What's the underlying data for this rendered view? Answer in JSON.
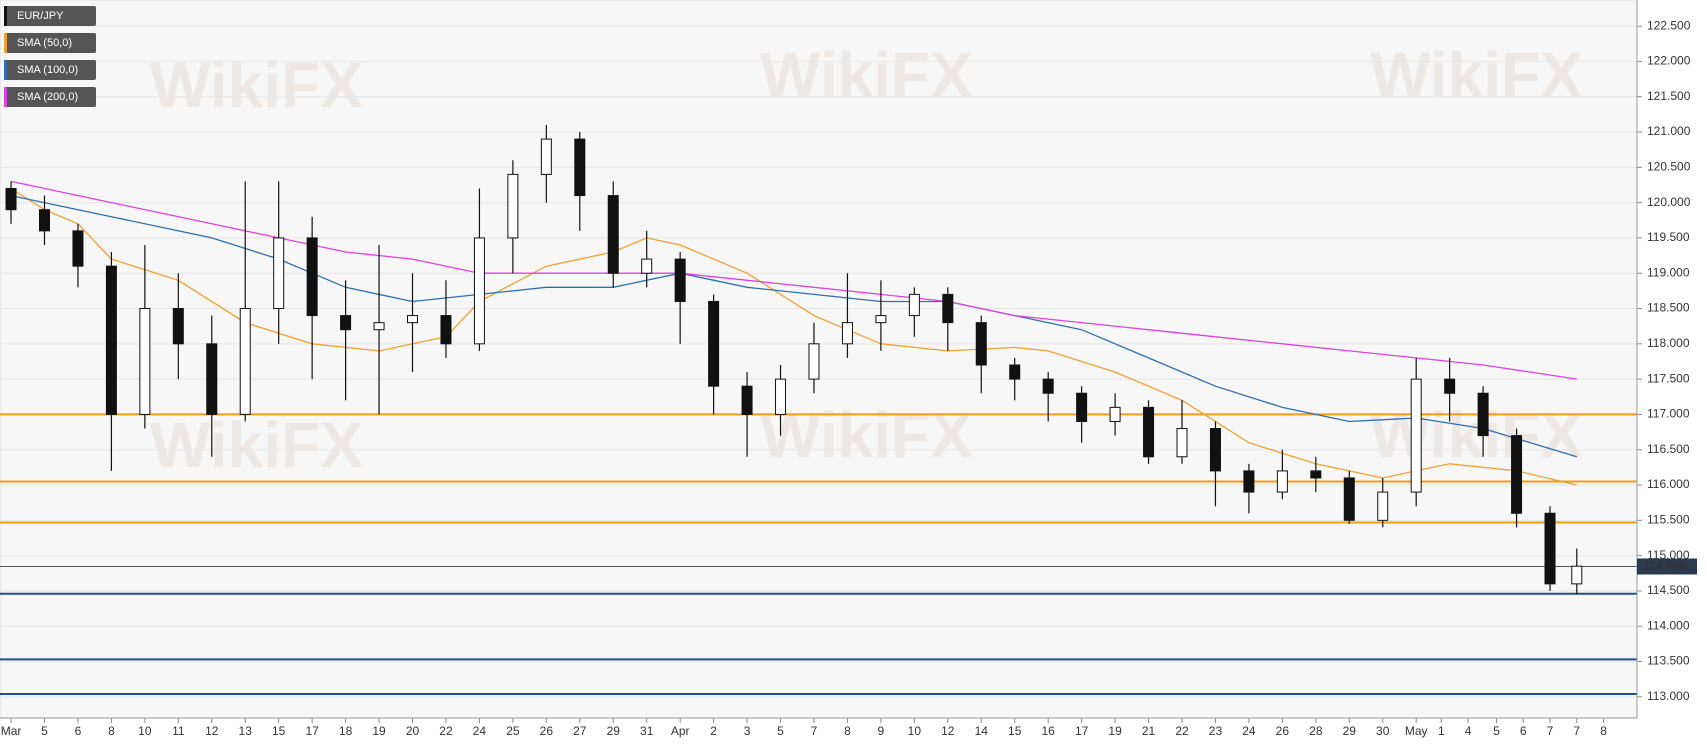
{
  "chart_data": {
    "type": "candlestick",
    "watermark": "WikiFX",
    "legend": [
      {
        "name": "EUR/JPY",
        "color": "#111111"
      },
      {
        "name": "SMA (50,0)",
        "color": "#f0a030"
      },
      {
        "name": "SMA (100,0)",
        "color": "#2e6fb0"
      },
      {
        "name": "SMA (200,0)",
        "color": "#e040e0"
      }
    ],
    "x": [
      0,
      1,
      2,
      3,
      4,
      5,
      6,
      7,
      8,
      9,
      10,
      11,
      12,
      13,
      14,
      15,
      16,
      17,
      18,
      19,
      20,
      21,
      22,
      23,
      24,
      25,
      26,
      27,
      28,
      29,
      30,
      31,
      32,
      33,
      34,
      35,
      36,
      37,
      38,
      39,
      40,
      41,
      42,
      43,
      44,
      45,
      46,
      46.8
    ],
    "open": [
      120.2,
      119.9,
      119.6,
      119.1,
      117.0,
      118.5,
      118.0,
      117.0,
      118.5,
      119.5,
      118.4,
      118.2,
      118.3,
      118.4,
      118.0,
      119.5,
      120.4,
      120.9,
      120.1,
      119.0,
      119.2,
      118.6,
      117.4,
      117.0,
      117.5,
      118.0,
      118.3,
      118.4,
      118.7,
      118.3,
      117.7,
      117.5,
      117.3,
      116.9,
      117.1,
      116.4,
      116.8,
      116.2,
      115.9,
      116.2,
      116.1,
      115.5,
      115.9,
      117.5,
      117.3,
      116.7,
      115.6,
      114.6
    ],
    "high": [
      120.3,
      120.1,
      119.7,
      119.3,
      119.4,
      119.0,
      118.4,
      120.3,
      120.3,
      119.8,
      118.9,
      119.4,
      119.0,
      118.9,
      120.2,
      120.6,
      121.1,
      121.0,
      120.3,
      119.6,
      119.3,
      118.7,
      117.6,
      117.7,
      118.3,
      119.0,
      118.9,
      118.8,
      118.8,
      118.4,
      117.8,
      117.6,
      117.4,
      117.3,
      117.2,
      117.2,
      116.9,
      116.3,
      116.5,
      116.4,
      116.2,
      116.1,
      117.8,
      117.8,
      117.4,
      116.8,
      115.7,
      115.1
    ],
    "low": [
      119.7,
      119.4,
      118.8,
      116.2,
      116.8,
      117.5,
      116.4,
      116.9,
      118.0,
      117.5,
      117.2,
      117.0,
      117.6,
      117.8,
      117.9,
      119.0,
      120.0,
      119.6,
      118.8,
      118.8,
      118.0,
      117.0,
      116.4,
      116.7,
      117.3,
      117.8,
      117.9,
      118.1,
      117.9,
      117.3,
      117.2,
      116.9,
      116.6,
      116.7,
      116.3,
      116.3,
      115.7,
      115.6,
      115.8,
      115.9,
      115.45,
      115.4,
      115.7,
      116.9,
      116.4,
      115.4,
      114.5,
      114.45
    ],
    "close": [
      119.9,
      119.6,
      119.1,
      117.0,
      118.5,
      118.0,
      117.0,
      118.5,
      119.5,
      118.4,
      118.2,
      118.3,
      118.4,
      118.0,
      119.5,
      120.4,
      120.9,
      120.1,
      119.0,
      119.2,
      118.6,
      117.4,
      117.0,
      117.5,
      118.0,
      118.3,
      118.4,
      118.7,
      118.3,
      117.7,
      117.5,
      117.3,
      116.9,
      117.1,
      116.4,
      116.8,
      116.2,
      115.9,
      116.2,
      116.1,
      115.5,
      115.9,
      117.5,
      117.3,
      116.7,
      115.6,
      114.6,
      114.85
    ],
    "up_color": "#ffffff",
    "down_color": "#111111",
    "series": [
      {
        "name": "SMA (50,0)",
        "color": "#f0a030",
        "x": [
          0,
          1,
          2,
          3,
          5,
          7,
          9,
          11,
          13,
          14,
          16,
          18,
          19,
          20,
          22,
          24,
          26,
          28,
          30,
          31,
          33,
          35,
          37,
          39,
          41,
          43,
          45,
          46.8
        ],
        "values": [
          120.2,
          119.9,
          119.7,
          119.2,
          118.9,
          118.3,
          118.0,
          117.9,
          118.1,
          118.6,
          119.1,
          119.3,
          119.5,
          119.4,
          119.0,
          118.4,
          118.0,
          117.9,
          117.95,
          117.9,
          117.6,
          117.2,
          116.6,
          116.3,
          116.1,
          116.3,
          116.2,
          116.0
        ]
      },
      {
        "name": "SMA (100,0)",
        "color": "#2e6fb0",
        "x": [
          0,
          3,
          6,
          8,
          10,
          12,
          14,
          16,
          18,
          20,
          22,
          24,
          26,
          28,
          30,
          32,
          34,
          36,
          38,
          40,
          42,
          44,
          46.8
        ],
        "values": [
          120.1,
          119.8,
          119.5,
          119.2,
          118.8,
          118.6,
          118.7,
          118.8,
          118.8,
          119.0,
          118.8,
          118.7,
          118.6,
          118.6,
          118.4,
          118.2,
          117.8,
          117.4,
          117.1,
          116.9,
          116.95,
          116.8,
          116.4
        ]
      },
      {
        "name": "SMA (200,0)",
        "color": "#e040e0",
        "x": [
          0,
          3,
          6,
          8,
          10,
          12,
          14,
          16,
          18,
          20,
          22,
          24,
          26,
          28,
          30,
          32,
          34,
          36,
          38,
          40,
          42,
          44,
          46.8
        ],
        "values": [
          120.3,
          120.0,
          119.7,
          119.5,
          119.3,
          119.2,
          119.0,
          119.0,
          119.0,
          119.0,
          118.9,
          118.8,
          118.7,
          118.6,
          118.4,
          118.3,
          118.2,
          118.1,
          118.0,
          117.9,
          117.8,
          117.7,
          117.5
        ]
      }
    ],
    "hlines": [
      {
        "value": 117.0,
        "color": "#f39c12"
      },
      {
        "value": 116.05,
        "color": "#f39c12"
      },
      {
        "value": 115.47,
        "color": "#f39c12"
      },
      {
        "value": 114.46,
        "color": "#1f4e8c"
      },
      {
        "value": 113.53,
        "color": "#1f4e8c"
      },
      {
        "value": 113.04,
        "color": "#1f4e8c"
      }
    ],
    "last_price": {
      "value": 114.846,
      "label": "114.846"
    },
    "ylim": [
      112.7,
      122.87
    ],
    "yticks": [
      {
        "value": 113.0,
        "label": "113.000"
      },
      {
        "value": 113.5,
        "label": "113.500"
      },
      {
        "value": 114.0,
        "label": "114.000"
      },
      {
        "value": 114.5,
        "label": "114.500"
      },
      {
        "value": 115.0,
        "label": "115.000"
      },
      {
        "value": 115.5,
        "label": "115.500"
      },
      {
        "value": 116.0,
        "label": "116.000"
      },
      {
        "value": 116.5,
        "label": "116.500"
      },
      {
        "value": 117.0,
        "label": "117.000"
      },
      {
        "value": 117.5,
        "label": "117.500"
      },
      {
        "value": 118.0,
        "label": "118.000"
      },
      {
        "value": 118.5,
        "label": "118.500"
      },
      {
        "value": 119.0,
        "label": "119.000"
      },
      {
        "value": 119.5,
        "label": "119.500"
      },
      {
        "value": 120.0,
        "label": "120.000"
      },
      {
        "value": 120.5,
        "label": "120.500"
      },
      {
        "value": 121.0,
        "label": "121.000"
      },
      {
        "value": 121.5,
        "label": "121.500"
      },
      {
        "value": 122.0,
        "label": "122.000"
      },
      {
        "value": 122.5,
        "label": "122.500"
      }
    ],
    "xlim": [
      -0.33,
      48.6
    ],
    "xticks": [
      {
        "value": 0,
        "label": "Mar"
      },
      {
        "value": 1,
        "label": "5"
      },
      {
        "value": 2,
        "label": "6"
      },
      {
        "value": 3,
        "label": "8"
      },
      {
        "value": 4,
        "label": "10"
      },
      {
        "value": 5,
        "label": "11"
      },
      {
        "value": 6,
        "label": "12"
      },
      {
        "value": 7,
        "label": "13"
      },
      {
        "value": 8,
        "label": "15"
      },
      {
        "value": 9,
        "label": "17"
      },
      {
        "value": 10,
        "label": "18"
      },
      {
        "value": 11,
        "label": "19"
      },
      {
        "value": 12,
        "label": "20"
      },
      {
        "value": 13,
        "label": "22"
      },
      {
        "value": 14,
        "label": "24"
      },
      {
        "value": 15,
        "label": "25"
      },
      {
        "value": 16,
        "label": "26"
      },
      {
        "value": 17,
        "label": "27"
      },
      {
        "value": 18,
        "label": "29"
      },
      {
        "value": 19,
        "label": "31"
      },
      {
        "value": 20,
        "label": "Apr"
      },
      {
        "value": 21,
        "label": "2"
      },
      {
        "value": 22,
        "label": "3"
      },
      {
        "value": 23,
        "label": "5"
      },
      {
        "value": 24,
        "label": "7"
      },
      {
        "value": 25,
        "label": "8"
      },
      {
        "value": 26,
        "label": "9"
      },
      {
        "value": 27,
        "label": "10"
      },
      {
        "value": 28,
        "label": "12"
      },
      {
        "value": 29,
        "label": "14"
      },
      {
        "value": 30,
        "label": "15"
      },
      {
        "value": 31,
        "label": "16"
      },
      {
        "value": 32,
        "label": "17"
      },
      {
        "value": 33,
        "label": "19"
      },
      {
        "value": 34,
        "label": "21"
      },
      {
        "value": 35,
        "label": "22"
      },
      {
        "value": 36,
        "label": "23"
      },
      {
        "value": 37,
        "label": "24"
      },
      {
        "value": 38,
        "label": "26"
      },
      {
        "value": 39,
        "label": "28"
      },
      {
        "value": 40,
        "label": "29"
      },
      {
        "value": 41,
        "label": "30"
      },
      {
        "value": 42,
        "label": "May"
      },
      {
        "value": 42.75,
        "label": "1"
      },
      {
        "value": 43.55,
        "label": "4"
      },
      {
        "value": 44.4,
        "label": "5"
      },
      {
        "value": 45.2,
        "label": "6"
      },
      {
        "value": 46.0,
        "label": "7"
      },
      {
        "value": 46.8,
        "label": "7"
      },
      {
        "value": 47.6,
        "label": "8"
      }
    ],
    "grid": true
  }
}
